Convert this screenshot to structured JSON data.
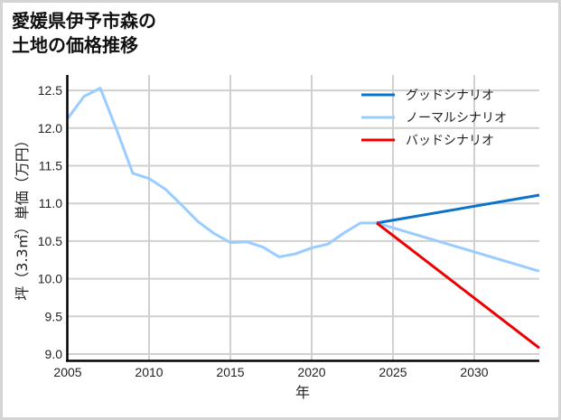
{
  "title": "愛媛県伊予市森の\n土地の価格推移",
  "chart_data": {
    "type": "line",
    "title": "愛媛県伊予市森の土地の価格推移",
    "xlabel": "年",
    "ylabel": "坪（3.3㎡）単価（万円）",
    "xlim": [
      2005,
      2034
    ],
    "ylim": [
      8.9,
      12.65
    ],
    "x_ticks": [
      "2005",
      "2010",
      "2015",
      "2020",
      "2025",
      "2030"
    ],
    "y_ticks": [
      "9.0",
      "9.5",
      "10.0",
      "10.5",
      "11.0",
      "11.5",
      "12.0",
      "12.5"
    ],
    "grid": true,
    "legend_position": "upper right",
    "series": [
      {
        "name": "ノーマルシナリオ",
        "color": "#99ccff",
        "x": [
          2005,
          2006,
          2007,
          2008,
          2009,
          2010,
          2011,
          2012,
          2013,
          2014,
          2015,
          2016,
          2017,
          2018,
          2019,
          2020,
          2021,
          2022,
          2023,
          2024,
          2034
        ],
        "values": [
          12.13,
          12.42,
          12.53,
          11.98,
          11.4,
          11.33,
          11.19,
          10.98,
          10.76,
          10.6,
          10.48,
          10.49,
          10.42,
          10.29,
          10.33,
          10.41,
          10.46,
          10.61,
          10.74,
          10.74,
          10.1
        ]
      },
      {
        "name": "グッドシナリオ",
        "color": "#0d72c9",
        "x": [
          2024,
          2034
        ],
        "values": [
          10.74,
          11.11
        ]
      },
      {
        "name": "バッドシナリオ",
        "color": "#ee0000",
        "x": [
          2024,
          2034
        ],
        "values": [
          10.74,
          9.08
        ]
      }
    ]
  },
  "legend": [
    {
      "label": "グッドシナリオ",
      "color": "#0d72c9"
    },
    {
      "label": "ノーマルシナリオ",
      "color": "#99ccff"
    },
    {
      "label": "バッドシナリオ",
      "color": "#ee0000"
    }
  ]
}
